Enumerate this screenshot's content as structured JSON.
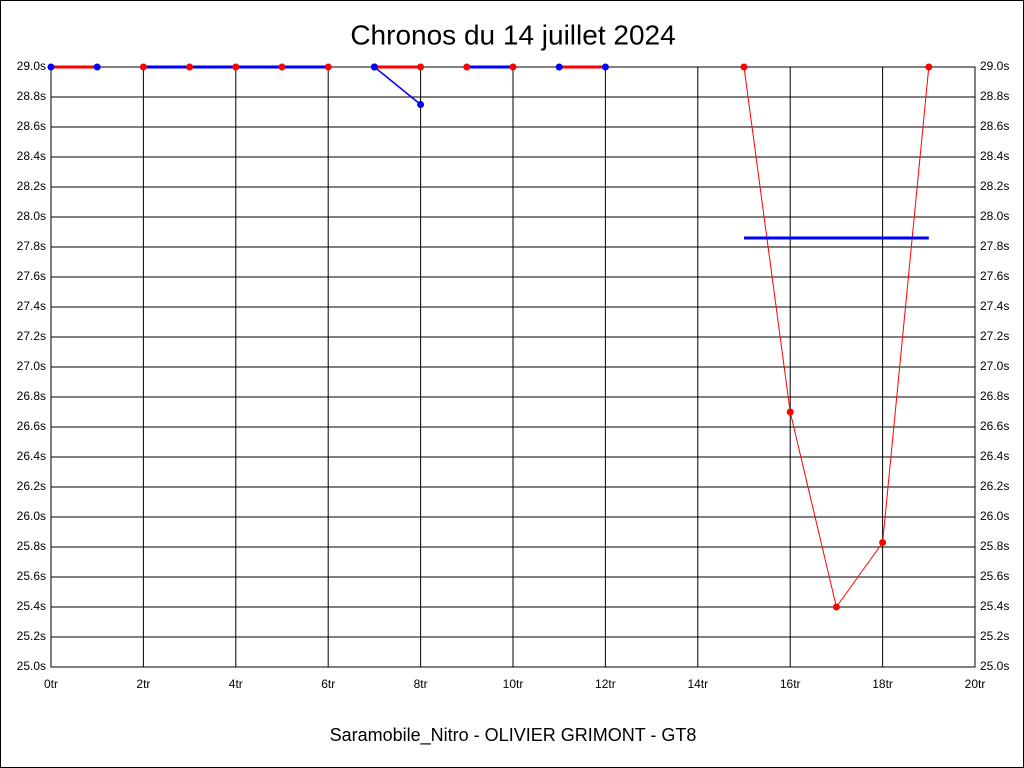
{
  "chart_data": {
    "type": "line",
    "title": "Chronos du 14 juillet 2024",
    "x_label": "Saramobile_Nitro - OLIVIER GRIMONT - GT8",
    "xlim": [
      0,
      20
    ],
    "xticks": [
      {
        "value": 0,
        "label": "0tr"
      },
      {
        "value": 2,
        "label": "2tr"
      },
      {
        "value": 4,
        "label": "4tr"
      },
      {
        "value": 6,
        "label": "6tr"
      },
      {
        "value": 8,
        "label": "8tr"
      },
      {
        "value": 10,
        "label": "10tr"
      },
      {
        "value": 12,
        "label": "12tr"
      },
      {
        "value": 14,
        "label": "14tr"
      },
      {
        "value": 16,
        "label": "16tr"
      },
      {
        "value": 18,
        "label": "18tr"
      },
      {
        "value": 20,
        "label": "20tr"
      }
    ],
    "ylim": [
      25,
      29
    ],
    "yticks": [
      {
        "value": 25,
        "label": "25.0s"
      },
      {
        "value": 25.2,
        "label": "25.2s"
      },
      {
        "value": 25.4,
        "label": "25.4s"
      },
      {
        "value": 25.6,
        "label": "25.6s"
      },
      {
        "value": 25.8,
        "label": "25.8s"
      },
      {
        "value": 26,
        "label": "26.0s"
      },
      {
        "value": 26.2,
        "label": "26.2s"
      },
      {
        "value": 26.4,
        "label": "26.4s"
      },
      {
        "value": 26.6,
        "label": "26.6s"
      },
      {
        "value": 26.8,
        "label": "26.8s"
      },
      {
        "value": 27,
        "label": "27.0s"
      },
      {
        "value": 27.2,
        "label": "27.2s"
      },
      {
        "value": 27.4,
        "label": "27.4s"
      },
      {
        "value": 27.6,
        "label": "27.6s"
      },
      {
        "value": 27.8,
        "label": "27.8s"
      },
      {
        "value": 28,
        "label": "28.0s"
      },
      {
        "value": 28.2,
        "label": "28.2s"
      },
      {
        "value": 28.4,
        "label": "28.4s"
      },
      {
        "value": 28.6,
        "label": "28.6s"
      },
      {
        "value": 28.8,
        "label": "28.8s"
      },
      {
        "value": 29,
        "label": "29.0s"
      }
    ],
    "grid": true,
    "series": [
      {
        "color": "#ff0000",
        "marker_color": "#0000ff",
        "width": 3,
        "x": [
          0,
          1
        ],
        "values": [
          29,
          29
        ]
      },
      {
        "color": "#0000ff",
        "marker_color": "#ff0000",
        "width": 3,
        "x": [
          2,
          3,
          4,
          5,
          6
        ],
        "values": [
          29,
          29,
          29,
          29,
          29
        ]
      },
      {
        "color": "#ff0000",
        "marker_color": "#ff0000",
        "width": 3,
        "x": [
          7,
          8
        ],
        "values": [
          29,
          29
        ]
      },
      {
        "color": "#0000ff",
        "marker_color": "#0000ff",
        "width": 1.5,
        "x": [
          7,
          8
        ],
        "values": [
          29,
          28.75
        ]
      },
      {
        "color": "#0000ff",
        "marker_color": "#ff0000",
        "width": 3,
        "x": [
          9,
          10
        ],
        "values": [
          29,
          29
        ]
      },
      {
        "color": "#ff0000",
        "marker_color": "#0000ff",
        "width": 3,
        "x": [
          11,
          12
        ],
        "values": [
          29,
          29
        ]
      },
      {
        "color": "#ff0000",
        "marker_color": "#ff0000",
        "width": 1,
        "x": [
          15,
          16,
          17,
          18,
          19
        ],
        "values": [
          29,
          26.7,
          25.4,
          25.83,
          29
        ]
      },
      {
        "color": "#0000ff",
        "markers": false,
        "width": 3,
        "x": [
          15,
          19
        ],
        "values": [
          27.86,
          27.86
        ]
      }
    ]
  }
}
